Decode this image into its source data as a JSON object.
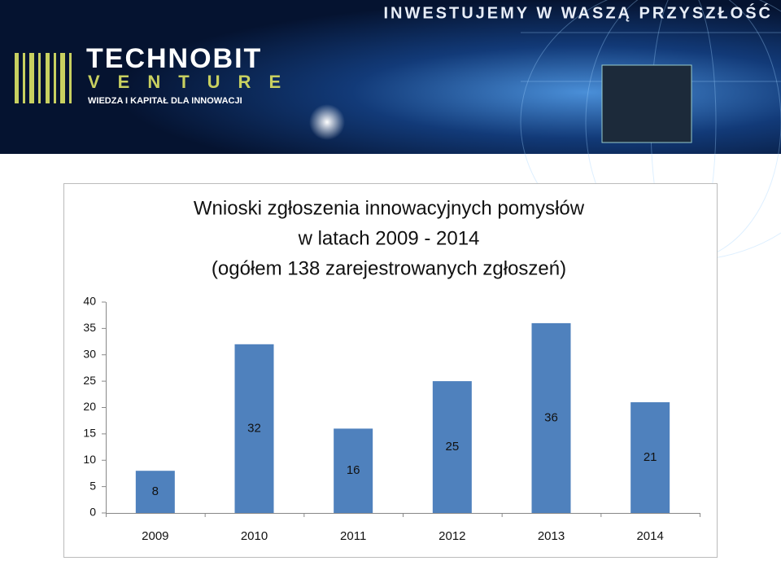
{
  "header": {
    "slogan": "INWESTUJEMY W WASZĄ PRZYSZŁOŚĆ",
    "brand": "TECHNOBIT",
    "brand_sub": "VENTURE",
    "tagline": "WIEDZA I KAPITAŁ DLA INNOWACJI"
  },
  "chart_data": {
    "type": "bar",
    "title": [
      "Wnioski zgłoszenia innowacyjnych pomysłów",
      "w latach 2009 - 2014",
      "(ogółem 138 zarejestrowanych zgłoszeń)"
    ],
    "categories": [
      "2009",
      "2010",
      "2011",
      "2012",
      "2013",
      "2014"
    ],
    "values": [
      8,
      32,
      16,
      25,
      36,
      21
    ],
    "color": "#4f81bd",
    "ylim": [
      0,
      40
    ],
    "yticks": [
      0,
      5,
      10,
      15,
      20,
      25,
      30,
      35,
      40
    ],
    "grid": false
  }
}
